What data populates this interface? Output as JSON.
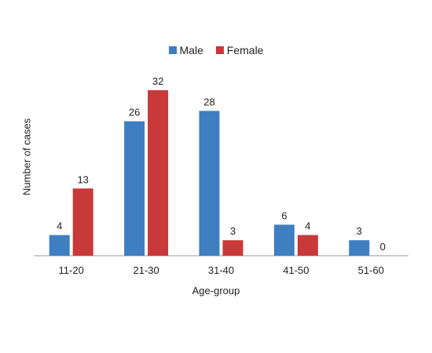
{
  "chart_data": {
    "type": "bar",
    "title": "",
    "xlabel": "Age-group",
    "ylabel": "Number of cases",
    "categories": [
      "11-20",
      "21-30",
      "31-40",
      "41-50",
      "51-60"
    ],
    "series": [
      {
        "name": "Male",
        "values": [
          4,
          26,
          28,
          6,
          3
        ],
        "color": "#3f7fc1"
      },
      {
        "name": "Female",
        "values": [
          13,
          32,
          3,
          4,
          0
        ],
        "color": "#c8393a"
      }
    ],
    "ylim": [
      0,
      32
    ],
    "grid": false,
    "legend": "top-center",
    "data_labels": true
  }
}
